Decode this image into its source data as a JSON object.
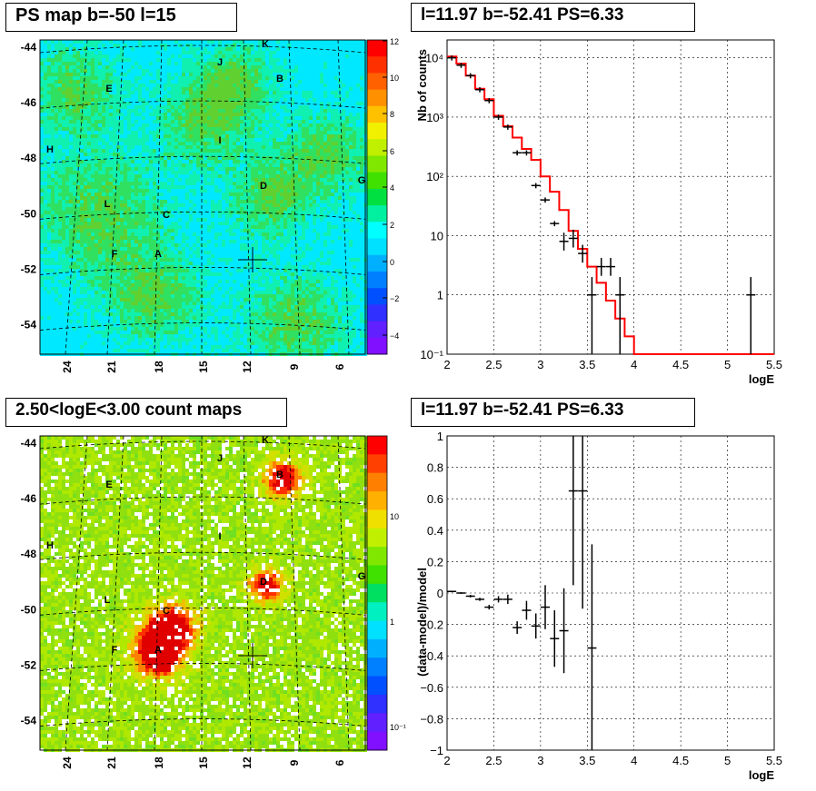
{
  "titles": {
    "tl": "PS map b=-50 l=15",
    "tr": "l=11.97 b=-52.41 PS=6.33",
    "bl": "2.50<logE<3.00 count maps",
    "br": "l=11.97 b=-52.41 PS=6.33"
  },
  "chart_data": [
    {
      "id": "ps-map",
      "type": "heatmap",
      "title": "PS map b=-50 l=15",
      "x_ticks": [
        "24",
        "21",
        "18",
        "15",
        "12",
        "9",
        "6"
      ],
      "y_ticks": [
        "-44",
        "-46",
        "-48",
        "-50",
        "-52",
        "-54"
      ],
      "colorbar_ticks": [
        "12",
        "10",
        "8",
        "6",
        "4",
        "2",
        "0",
        "−2",
        "−4"
      ],
      "colorbar_range": [
        -5,
        12
      ],
      "sources": [
        {
          "label": "K"
        },
        {
          "label": "J"
        },
        {
          "label": "B"
        },
        {
          "label": "E"
        },
        {
          "label": "H"
        },
        {
          "label": "I"
        },
        {
          "label": "D"
        },
        {
          "label": "G"
        },
        {
          "label": "L"
        },
        {
          "label": "C"
        },
        {
          "label": "F"
        },
        {
          "label": "A"
        }
      ],
      "marker": "cross at l=11.97 b=-52.41"
    },
    {
      "id": "spectrum",
      "type": "line",
      "title": "l=11.97 b=-52.41 PS=6.33",
      "xlabel": "logE",
      "ylabel": "Nb of counts",
      "log_y": true,
      "xlim": [
        2,
        5.5
      ],
      "ylim": [
        0.1,
        20000
      ],
      "x_ticks": [
        "2",
        "2.5",
        "3",
        "3.5",
        "4",
        "4.5",
        "5",
        "5.5"
      ],
      "y_ticks": [
        "10⁻¹",
        "1",
        "10",
        "10²",
        "10³",
        "10⁴"
      ],
      "model_color": "#ff0000",
      "model": {
        "edges": [
          2.0,
          2.1,
          2.2,
          2.3,
          2.4,
          2.5,
          2.6,
          2.7,
          2.8,
          2.9,
          3.0,
          3.1,
          3.2,
          3.3,
          3.4,
          3.5,
          3.6,
          3.7,
          3.8,
          3.9,
          4.0,
          5.5
        ],
        "values": [
          10500,
          8000,
          5000,
          3000,
          2000,
          1050,
          700,
          450,
          290,
          190,
          100,
          55,
          27,
          12,
          6,
          3,
          1.6,
          0.8,
          0.4,
          0.2,
          0.1
        ]
      },
      "data_points": [
        {
          "x": 2.05,
          "y": 10000
        },
        {
          "x": 2.15,
          "y": 7500
        },
        {
          "x": 2.25,
          "y": 5000
        },
        {
          "x": 2.35,
          "y": 2900
        },
        {
          "x": 2.45,
          "y": 1900
        },
        {
          "x": 2.55,
          "y": 1000
        },
        {
          "x": 2.65,
          "y": 680
        },
        {
          "x": 2.75,
          "y": 250
        },
        {
          "x": 2.85,
          "y": 250
        },
        {
          "x": 2.95,
          "y": 70
        },
        {
          "x": 3.05,
          "y": 40
        },
        {
          "x": 3.15,
          "y": 16
        },
        {
          "x": 3.25,
          "y": 8
        },
        {
          "x": 3.35,
          "y": 9
        },
        {
          "x": 3.45,
          "y": 5
        },
        {
          "x": 3.55,
          "y": 1
        },
        {
          "x": 3.65,
          "y": 3
        },
        {
          "x": 3.75,
          "y": 3
        },
        {
          "x": 3.85,
          "y": 1
        },
        {
          "x": 5.25,
          "y": 1
        }
      ]
    },
    {
      "id": "count-map",
      "type": "heatmap",
      "title": "2.50<logE<3.00 count maps",
      "x_ticks": [
        "24",
        "21",
        "18",
        "15",
        "12",
        "9",
        "6"
      ],
      "y_ticks": [
        "-44",
        "-46",
        "-48",
        "-50",
        "-52",
        "-54"
      ],
      "colorbar_ticks": [
        "10",
        "1",
        "10⁻¹"
      ],
      "colorbar_log": true,
      "sources": [
        {
          "label": "K"
        },
        {
          "label": "J"
        },
        {
          "label": "B"
        },
        {
          "label": "E"
        },
        {
          "label": "H"
        },
        {
          "label": "I"
        },
        {
          "label": "D"
        },
        {
          "label": "G"
        },
        {
          "label": "L"
        },
        {
          "label": "C"
        },
        {
          "label": "F"
        },
        {
          "label": "A"
        }
      ],
      "marker": "cross at l=11.97 b=-52.41"
    },
    {
      "id": "residuals",
      "type": "scatter",
      "title": "l=11.97 b=-52.41 PS=6.33",
      "xlabel": "logE",
      "ylabel": "(data-model)/model",
      "xlim": [
        2,
        5.5
      ],
      "ylim": [
        -1,
        1
      ],
      "x_ticks": [
        "2",
        "2.5",
        "3",
        "3.5",
        "4",
        "4.5",
        "5",
        "5.5"
      ],
      "y_ticks": [
        "1",
        "0.8",
        "0.6",
        "0.4",
        "0.2",
        "0",
        "−0.2",
        "−0.4",
        "−0.6",
        "−0.8",
        "−1"
      ],
      "data_points": [
        {
          "x": 2.05,
          "y": 0.01,
          "err": 0.005
        },
        {
          "x": 2.15,
          "y": 0.0,
          "err": 0.005
        },
        {
          "x": 2.25,
          "y": -0.02,
          "err": 0.008
        },
        {
          "x": 2.35,
          "y": -0.04,
          "err": 0.01
        },
        {
          "x": 2.45,
          "y": -0.09,
          "err": 0.015
        },
        {
          "x": 2.55,
          "y": -0.04,
          "err": 0.02
        },
        {
          "x": 2.65,
          "y": -0.04,
          "err": 0.03
        },
        {
          "x": 2.75,
          "y": -0.22,
          "err": 0.04
        },
        {
          "x": 2.85,
          "y": -0.11,
          "err": 0.06
        },
        {
          "x": 2.95,
          "y": -0.21,
          "err": 0.08
        },
        {
          "x": 3.05,
          "y": -0.09,
          "err": 0.14
        },
        {
          "x": 3.15,
          "y": -0.29,
          "err": 0.18
        },
        {
          "x": 3.25,
          "y": -0.24,
          "err": 0.27
        },
        {
          "x": 3.35,
          "y": 0.65,
          "err": 0.6
        },
        {
          "x": 3.45,
          "y": 0.65,
          "err": 0.75
        },
        {
          "x": 3.55,
          "y": -0.35,
          "err": 0.66
        }
      ]
    }
  ]
}
